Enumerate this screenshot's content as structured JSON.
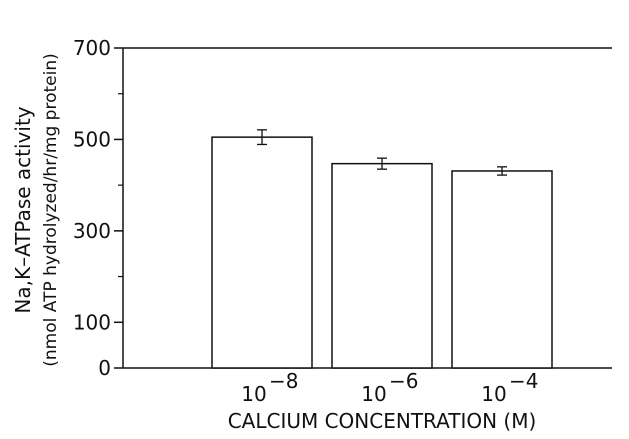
{
  "chart_data": {
    "type": "bar",
    "categories": [
      {
        "base": "10",
        "exp": "−8"
      },
      {
        "base": "10",
        "exp": "−6"
      },
      {
        "base": "10",
        "exp": "−4"
      }
    ],
    "values": [
      505,
      447,
      431
    ],
    "errors": [
      16,
      12,
      9
    ],
    "xlabel": "CALCIUM CONCENTRATION (M)",
    "ylabel_line1": "Na,K–ATPase activity",
    "ylabel_line2": "(nmol ATP hydrolyzed/hr/mg protein)",
    "ylim": [
      0,
      700
    ],
    "yticks": [
      0,
      100,
      300,
      500,
      700
    ],
    "yticks_minor": [
      200,
      400,
      600
    ],
    "grid": false,
    "bar_fill": "#ffffff",
    "line_color": "#111111"
  }
}
